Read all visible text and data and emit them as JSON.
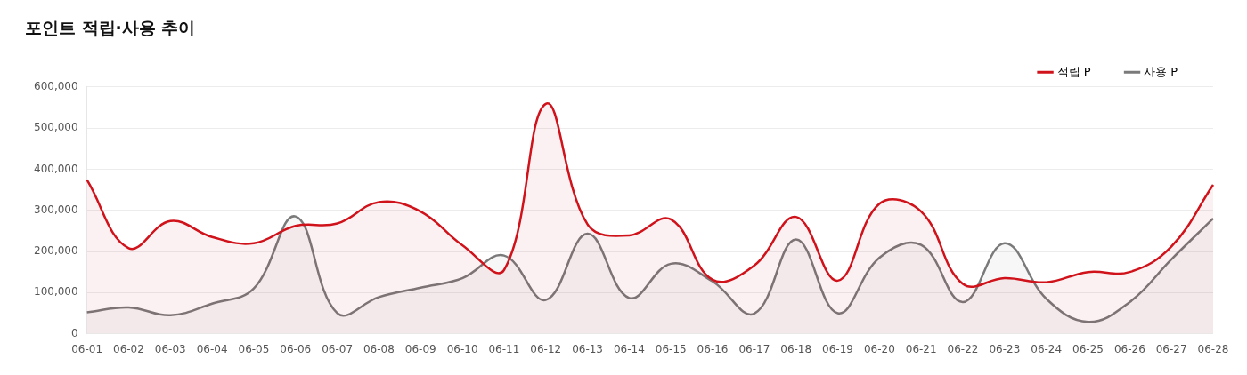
{
  "chart_data": {
    "type": "area",
    "title": "포인트 적립·사용 추이",
    "categories": [
      "06-01",
      "06-02",
      "06-03",
      "06-04",
      "06-05",
      "06-06",
      "06-07",
      "06-08",
      "06-09",
      "06-10",
      "06-11",
      "06-12",
      "06-13",
      "06-14",
      "06-15",
      "06-16",
      "06-17",
      "06-18",
      "06-19",
      "06-20",
      "06-21",
      "06-22",
      "06-23",
      "06-24",
      "06-25",
      "06-26",
      "06-27",
      "06-28"
    ],
    "series": [
      {
        "name": "적립 P",
        "color": "#d0121b",
        "values": [
          374000,
          208000,
          274000,
          235000,
          220000,
          262000,
          268000,
          320000,
          297000,
          215000,
          155000,
          559000,
          266000,
          239000,
          278000,
          131000,
          166000,
          284000,
          129000,
          316000,
          297000,
          121000,
          135000,
          125000,
          150000,
          150000,
          212000,
          362000
        ]
      },
      {
        "name": "사용 P",
        "color": "#7a7a7a",
        "values": [
          52000,
          64000,
          45000,
          73000,
          110000,
          285000,
          50000,
          89000,
          112000,
          135000,
          190000,
          82000,
          243000,
          87000,
          170000,
          127000,
          49000,
          229000,
          50000,
          185000,
          216000,
          77000,
          220000,
          85000,
          29000,
          77000,
          181000,
          280000
        ]
      }
    ],
    "ylim": [
      0,
      600000
    ],
    "yticks": [
      {
        "value": 0,
        "label": "0"
      },
      {
        "value": 100000,
        "label": "100,000"
      },
      {
        "value": 200000,
        "label": "200,000"
      },
      {
        "value": 300000,
        "label": "300,000"
      },
      {
        "value": 400000,
        "label": "400,000"
      },
      {
        "value": 500000,
        "label": "500,000"
      },
      {
        "value": 600000,
        "label": "600,000"
      }
    ],
    "grid": "y",
    "legend": "top right",
    "marker": "none",
    "line_style": "solid"
  }
}
